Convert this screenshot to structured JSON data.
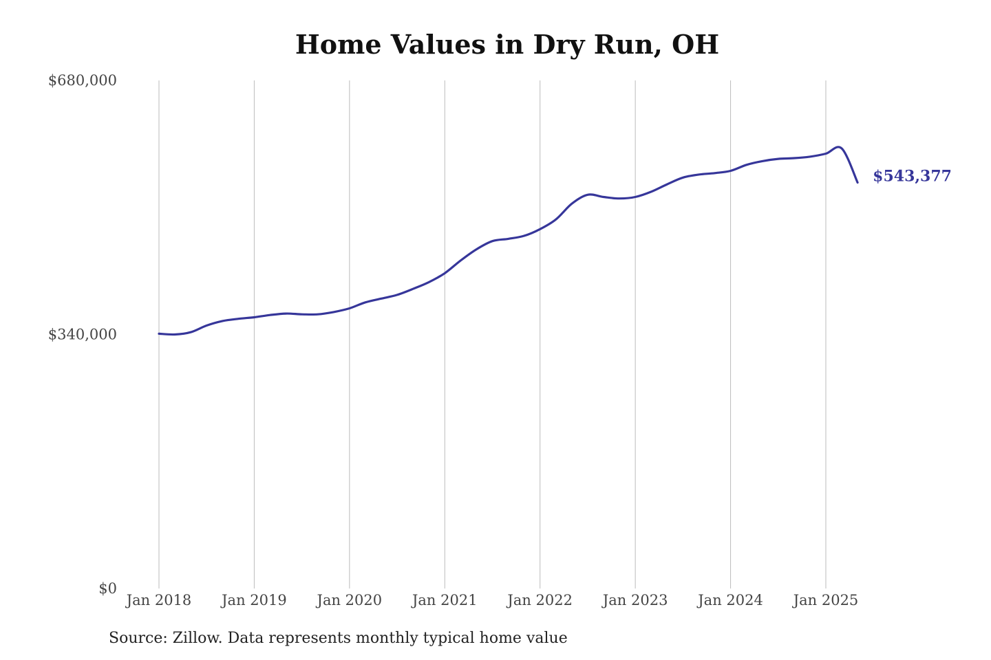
{
  "title": "Home Values in Dry Run, OH",
  "source": "Source: Zillow. Data represents monthly typical home value",
  "colors": {
    "line": "#36369a",
    "grid": "#bbbbbb",
    "text": "#444444"
  },
  "chart_data": {
    "type": "line",
    "title": "Home Values in Dry Run, OH",
    "xlabel": "",
    "ylabel": "",
    "ylim": [
      0,
      680000
    ],
    "y_ticks": [
      0,
      340000,
      680000
    ],
    "y_tick_labels": [
      "$0",
      "$340,000",
      "$680,000"
    ],
    "x_ticks": [
      "2018-01",
      "2019-01",
      "2020-01",
      "2021-01",
      "2022-01",
      "2023-01",
      "2024-01",
      "2025-01"
    ],
    "x_tick_labels": [
      "Jan 2018",
      "Jan 2019",
      "Jan 2020",
      "Jan 2021",
      "Jan 2022",
      "Jan 2023",
      "Jan 2024",
      "Jan 2025"
    ],
    "grid": "vertical",
    "end_label": "$543,377",
    "series": [
      {
        "x": [
          "2018-01",
          "2018-03",
          "2018-05",
          "2018-07",
          "2018-09",
          "2018-11",
          "2019-01",
          "2019-03",
          "2019-05",
          "2019-07",
          "2019-09",
          "2019-11",
          "2020-01",
          "2020-03",
          "2020-05",
          "2020-07",
          "2020-09",
          "2020-11",
          "2021-01",
          "2021-03",
          "2021-05",
          "2021-07",
          "2021-09",
          "2021-11",
          "2022-01",
          "2022-03",
          "2022-05",
          "2022-07",
          "2022-09",
          "2022-11",
          "2023-01",
          "2023-03",
          "2023-05",
          "2023-07",
          "2023-09",
          "2023-11",
          "2024-01",
          "2024-03",
          "2024-05",
          "2024-07",
          "2024-09",
          "2024-11",
          "2025-01",
          "2025-03",
          "2025-05"
        ],
        "values": [
          341000,
          340000,
          343000,
          352000,
          358000,
          361000,
          363000,
          366000,
          368000,
          367000,
          367000,
          370000,
          375000,
          383000,
          388000,
          393000,
          401000,
          410000,
          422000,
          439000,
          454000,
          465000,
          468000,
          472000,
          481000,
          494000,
          515000,
          527000,
          524000,
          522000,
          524000,
          531000,
          541000,
          550000,
          554000,
          556000,
          559000,
          567000,
          572000,
          575000,
          576000,
          578000,
          582000,
          589000,
          543377
        ]
      }
    ]
  }
}
